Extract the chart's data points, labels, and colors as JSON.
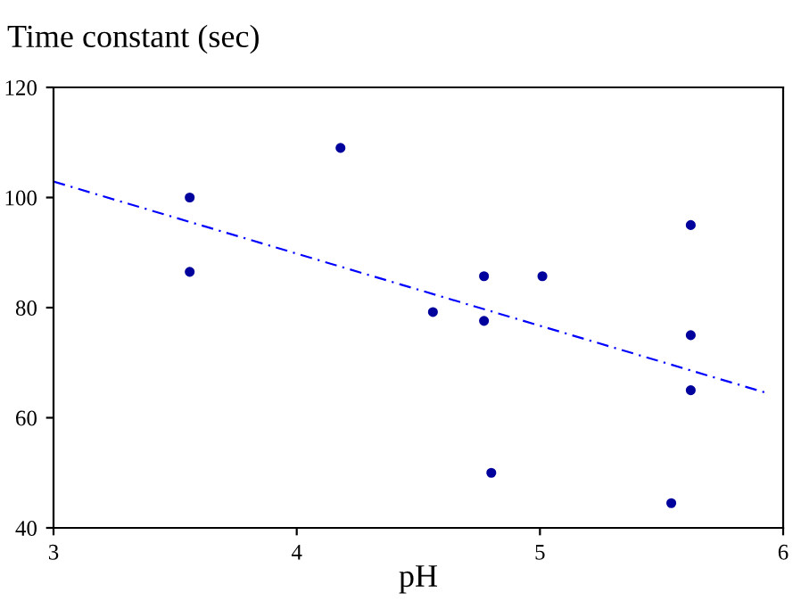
{
  "chart_data": {
    "type": "scatter",
    "ylabel": "Time constant (sec)",
    "xlabel": "pH",
    "xlim": [
      3,
      6
    ],
    "xticks": [
      3,
      4,
      5,
      6
    ],
    "ylim": [
      40,
      120
    ],
    "yticks": [
      40,
      60,
      80,
      100,
      120
    ],
    "grid": false,
    "legend": false,
    "series": [
      {
        "color": "#00009c",
        "marker": "circle",
        "x": [
          3.56,
          3.56,
          4.18,
          4.56,
          4.77,
          4.77,
          4.8,
          5.01,
          5.62,
          5.62,
          5.62,
          5.54
        ],
        "values": [
          100,
          86.5,
          109,
          79.2,
          85.7,
          77.6,
          50,
          85.7,
          95,
          75,
          65,
          44.5
        ]
      },
      {
        "type": "line",
        "color": "#0000ff",
        "line_style": "dashed",
        "marker": "none",
        "x": [
          3,
          5.94
        ],
        "values": [
          102.9,
          64.4
        ]
      }
    ]
  }
}
